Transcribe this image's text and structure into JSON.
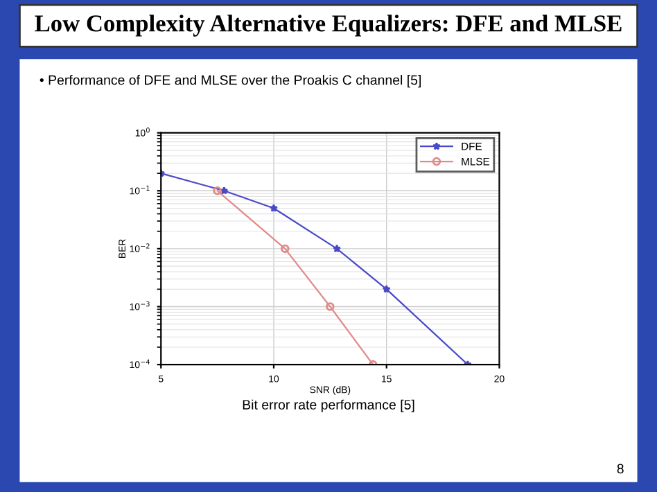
{
  "chart_data": {
    "type": "line",
    "title": "Low Complexity Alternative Equalizers: DFE and MLSE",
    "subtitle": "• Performance of DFE and MLSE over the Proakis C channel [5]",
    "xlabel": "SNR (dB)",
    "ylabel": "BER",
    "log": "y",
    "xlim": [
      5,
      20
    ],
    "xticks": [
      5,
      10,
      15,
      20
    ],
    "ylim": [
      0.0001,
      1
    ],
    "yticks": [
      {
        "value": 0.0001,
        "label": "10$^{−4}$"
      },
      {
        "value": 0.001,
        "label": "10$^{−3}$"
      },
      {
        "value": 0.01,
        "label": "10$^{−2}$"
      },
      {
        "value": 0.1,
        "label": "10$^{−1}$"
      },
      {
        "value": 1,
        "label": "10$^{0}$"
      }
    ],
    "grid": true,
    "legend": "top right",
    "line_style": "solid",
    "series": [
      {
        "name": "DFE",
        "color": "#4a4ac8",
        "marker": "star",
        "x": [
          5,
          7.8,
          10,
          12.8,
          15,
          18.6
        ],
        "values": [
          0.2,
          0.1,
          0.05,
          0.01,
          0.002,
          0.0001
        ]
      },
      {
        "name": "MLSE",
        "color": "#e08a8a",
        "marker": "circle",
        "x": [
          7.5,
          10.5,
          12.5,
          14.4
        ],
        "values": [
          0.1,
          0.01,
          0.001,
          0.0001
        ]
      }
    ],
    "annotations": [
      "Bit error rate performance [5]",
      "8"
    ]
  }
}
